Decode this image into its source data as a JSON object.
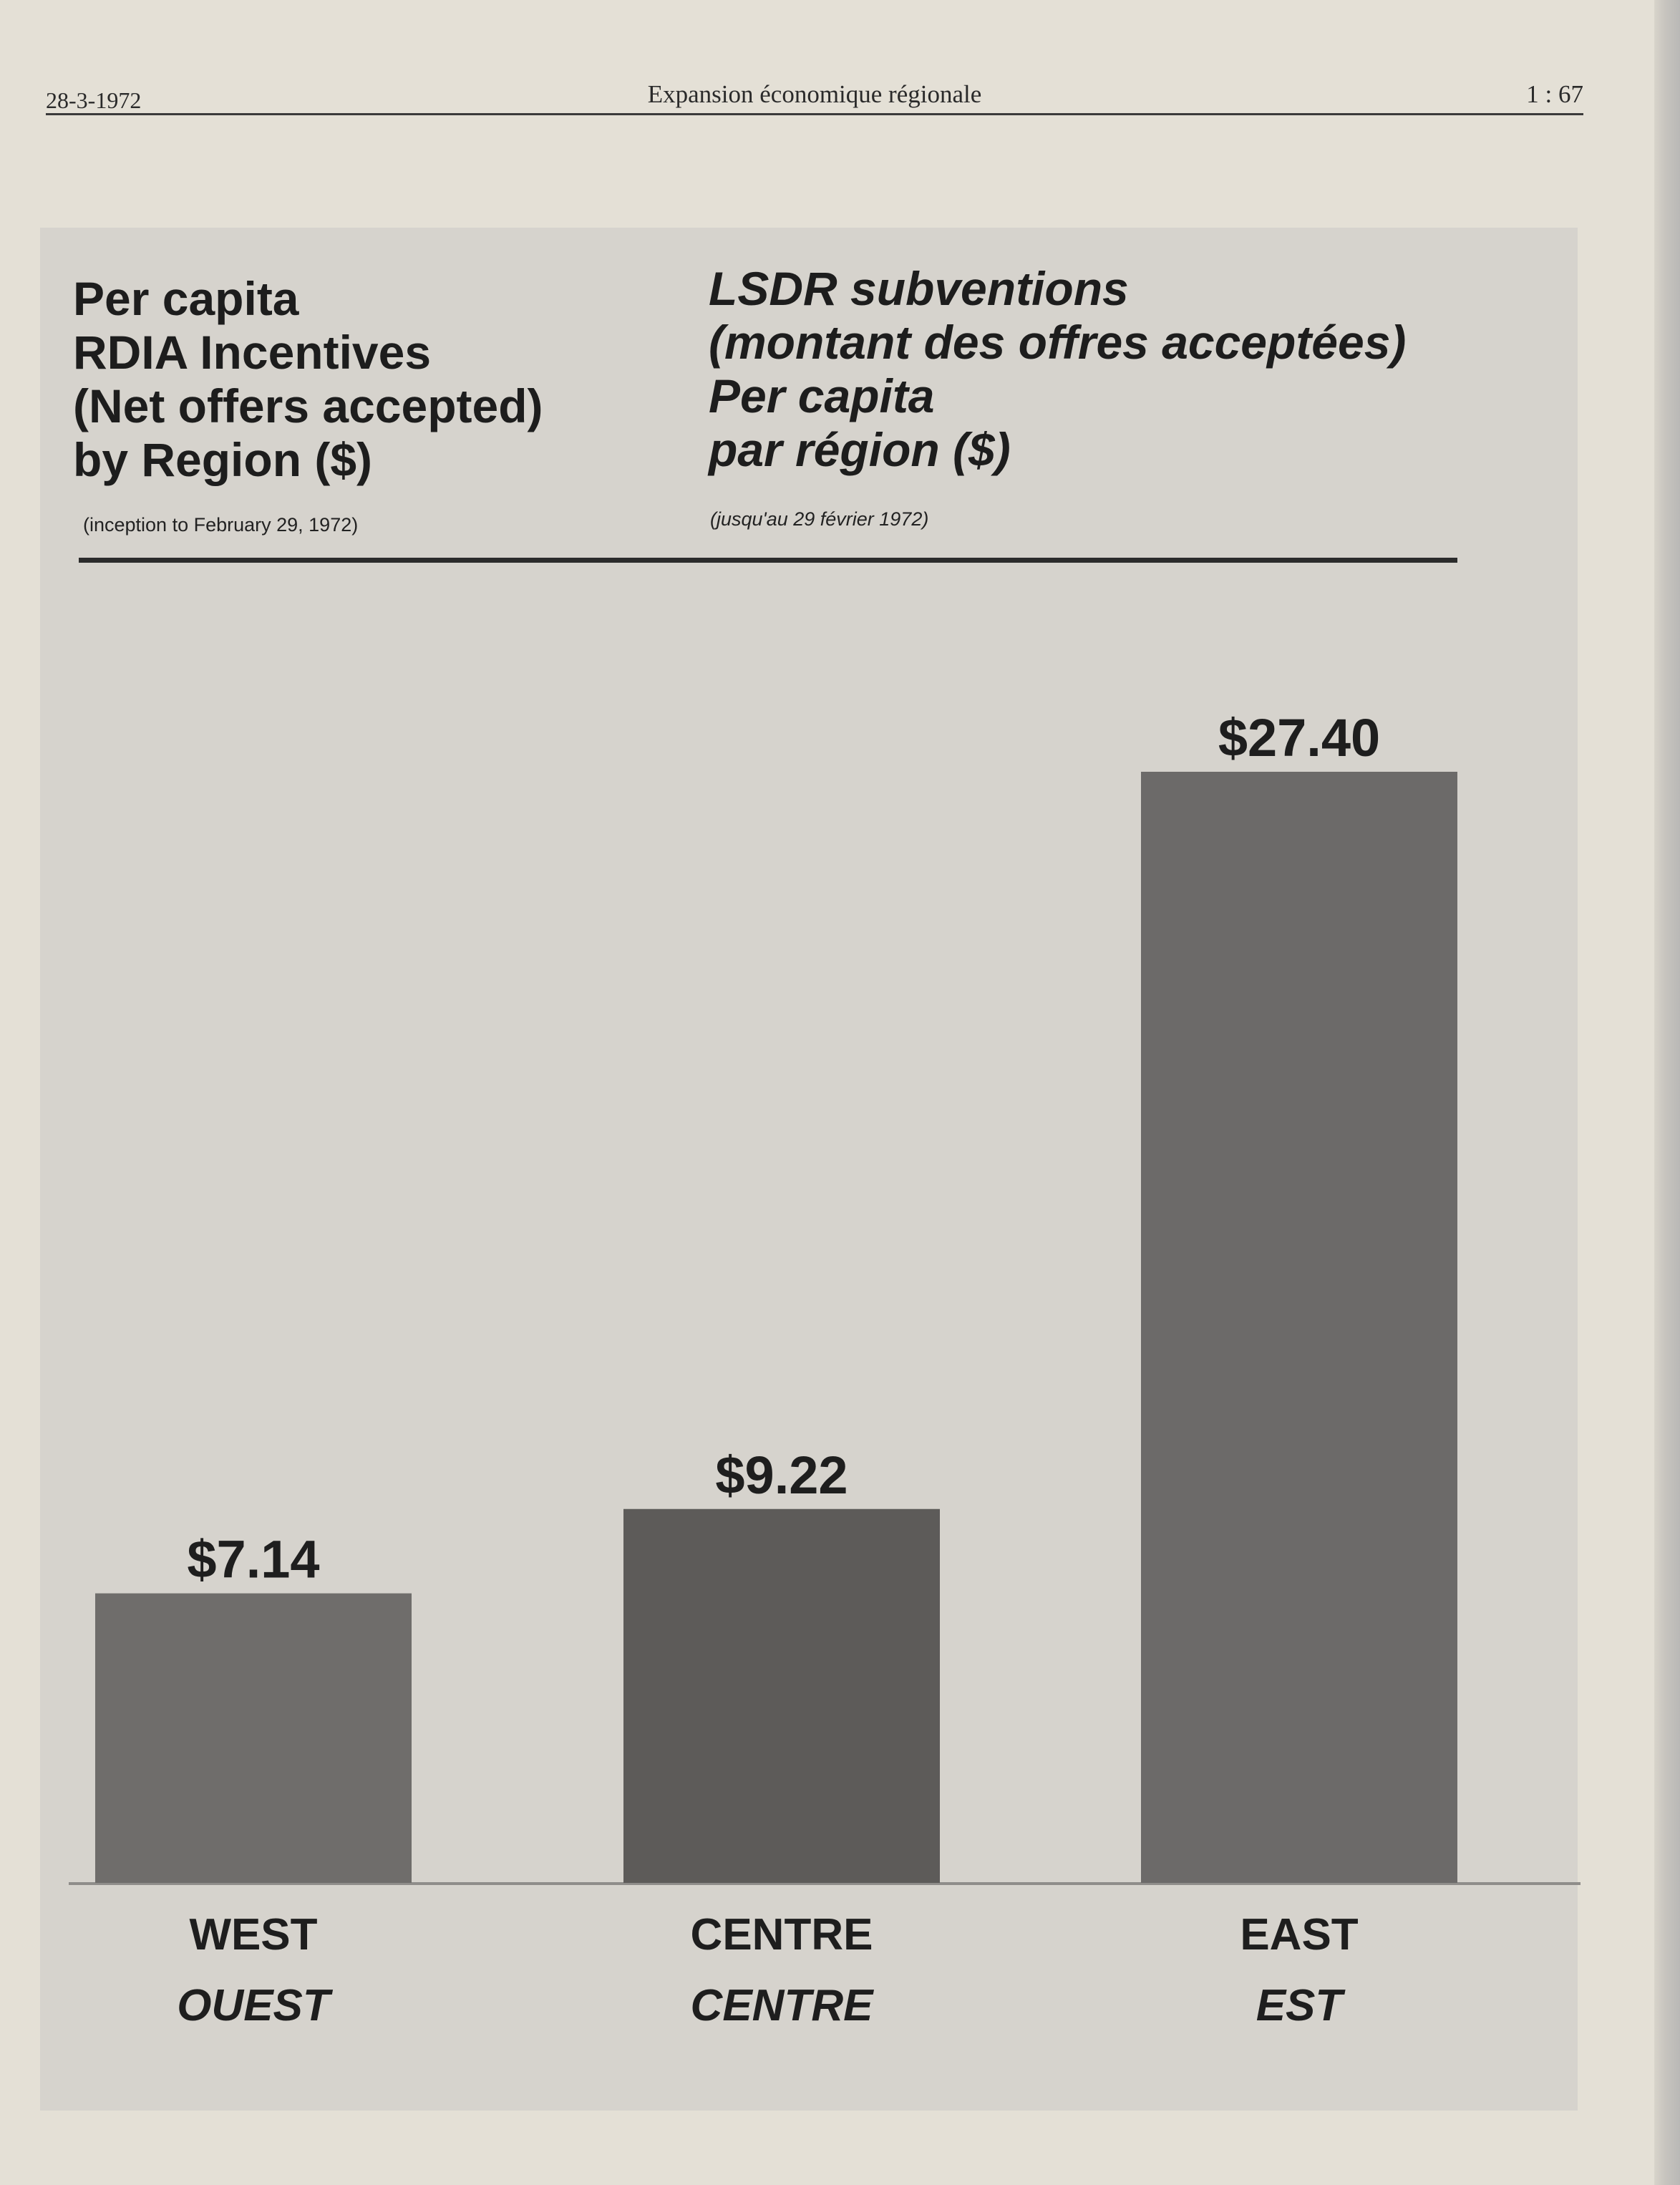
{
  "running_head": {
    "date": "28-3-1972",
    "title": "Expansion économique régionale",
    "page": "1 : 67"
  },
  "chart_data": {
    "type": "bar",
    "title": [
      "Per capita",
      "RDIA Incentives",
      "(Net offers accepted)",
      "by Region ($)"
    ],
    "subtitle": "(inception to February 29, 1972)",
    "title_fr": [
      "LSDR subventions",
      "(montant des offres acceptées)",
      "Per capita",
      "par région ($)"
    ],
    "subtitle_fr": "(jusqu'au 29 février 1972)",
    "categories": [
      "WEST",
      "CENTRE",
      "EAST"
    ],
    "categories_fr": [
      "OUEST",
      "CENTRE",
      "EST"
    ],
    "values": [
      7.14,
      9.22,
      27.4
    ],
    "data_labels": [
      "$7.14",
      "$9.22",
      "$27.40"
    ],
    "bar_colors": [
      "#6f6d6b",
      "#5d5b59",
      "#6c6a69"
    ],
    "ylim": [
      0,
      27.4
    ],
    "grid": false,
    "legend": "none"
  }
}
